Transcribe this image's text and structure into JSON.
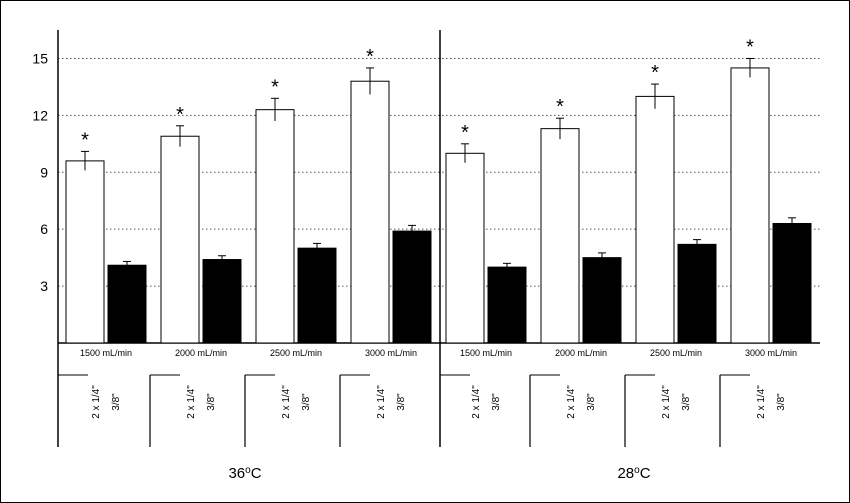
{
  "chart_data": {
    "type": "bar",
    "ylim": [
      0,
      16.5
    ],
    "yticks": [
      "3",
      "6",
      "9",
      "12",
      "15"
    ],
    "grid": "horizontal dotted",
    "significance_marker": "*",
    "groups": [
      {
        "label": "36oC",
        "base": "36",
        "sup": "o",
        "unit": "C",
        "categories": [
          "1500 mL/min",
          "2000 mL/min",
          "2500 mL/min",
          "3000 mL/min"
        ],
        "sub_labels": [
          [
            "2 x 1/4\"",
            "3/8\""
          ],
          [
            "2 x 1/4\"",
            "3/8\""
          ],
          [
            "2 x 1/4\"",
            "3/8\""
          ],
          [
            "2 x 1/4\"",
            "3/8\""
          ]
        ],
        "series": [
          {
            "fill": "#ffffff",
            "values": [
              9.6,
              10.9,
              12.3,
              13.8
            ],
            "errors": [
              0.5,
              0.55,
              0.6,
              0.7
            ],
            "significant": [
              true,
              true,
              true,
              true
            ]
          },
          {
            "fill": "#000000",
            "values": [
              4.1,
              4.4,
              5.0,
              5.9
            ],
            "errors": [
              0.2,
              0.2,
              0.25,
              0.3
            ],
            "significant": [
              false,
              false,
              false,
              false
            ]
          }
        ]
      },
      {
        "label": "28oC",
        "base": "28",
        "sup": "o",
        "unit": "C",
        "categories": [
          "1500 mL/min",
          "2000 mL/min",
          "2500 mL/min",
          "3000 mL/min"
        ],
        "sub_labels": [
          [
            "2 x 1/4\"",
            "3/8\""
          ],
          [
            "2 x 1/4\"",
            "3/8\""
          ],
          [
            "2 x 1/4\"",
            "3/8\""
          ],
          [
            "2 x 1/4\"",
            "3/8\""
          ]
        ],
        "series": [
          {
            "fill": "#ffffff",
            "values": [
              10.0,
              11.3,
              13.0,
              14.5
            ],
            "errors": [
              0.5,
              0.55,
              0.65,
              0.5
            ],
            "significant": [
              true,
              true,
              true,
              true
            ]
          },
          {
            "fill": "#000000",
            "values": [
              4.0,
              4.5,
              5.2,
              6.3
            ],
            "errors": [
              0.2,
              0.25,
              0.25,
              0.3
            ],
            "significant": [
              false,
              false,
              false,
              false
            ]
          }
        ]
      }
    ]
  }
}
